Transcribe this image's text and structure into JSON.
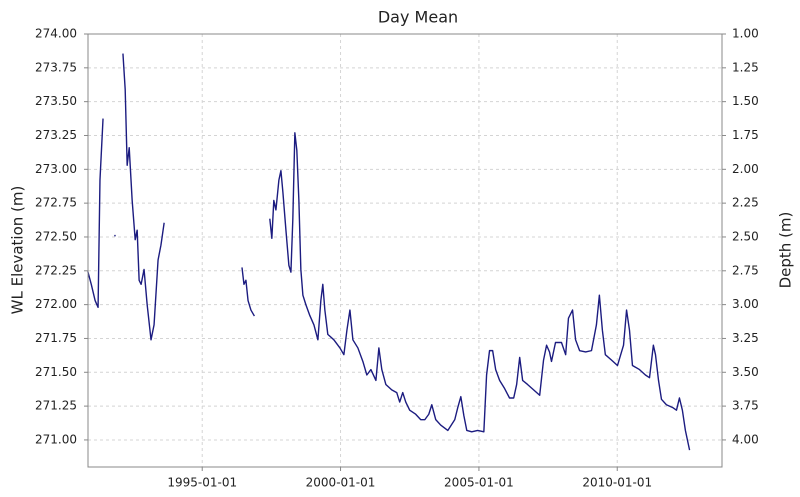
{
  "chart_data": {
    "type": "line",
    "title": "Day Mean",
    "y_label": "WL Elevation (m)",
    "y2_label": "Depth (m)",
    "xlim": [
      "1990-11-15",
      "2013-10-15"
    ],
    "xticks": [
      "1995-01-01",
      "2000-01-01",
      "2005-01-01",
      "2010-01-01"
    ],
    "ylim": [
      270.8,
      274.0
    ],
    "yticks": [
      {
        "value": 271.0,
        "label": "271.00"
      },
      {
        "value": 271.25,
        "label": "271.25"
      },
      {
        "value": 271.5,
        "label": "271.50"
      },
      {
        "value": 271.75,
        "label": "271.75"
      },
      {
        "value": 272.0,
        "label": "272.00"
      },
      {
        "value": 272.25,
        "label": "272.25"
      },
      {
        "value": 272.5,
        "label": "272.50"
      },
      {
        "value": 272.75,
        "label": "272.75"
      },
      {
        "value": 273.0,
        "label": "273.00"
      },
      {
        "value": 273.25,
        "label": "273.25"
      },
      {
        "value": 273.5,
        "label": "273.50"
      },
      {
        "value": 273.75,
        "label": "273.75"
      },
      {
        "value": 274.0,
        "label": "274.00"
      }
    ],
    "y2lim": [
      4.2,
      1.0
    ],
    "y2ticks": [
      {
        "value": 4.0,
        "label": "4.00"
      },
      {
        "value": 3.75,
        "label": "3.75"
      },
      {
        "value": 3.5,
        "label": "3.50"
      },
      {
        "value": 3.25,
        "label": "3.25"
      },
      {
        "value": 3.0,
        "label": "3.00"
      },
      {
        "value": 2.75,
        "label": "2.75"
      },
      {
        "value": 2.5,
        "label": "2.50"
      },
      {
        "value": 2.25,
        "label": "2.25"
      },
      {
        "value": 2.0,
        "label": "2.00"
      },
      {
        "value": 1.75,
        "label": "1.75"
      },
      {
        "value": 1.5,
        "label": "1.50"
      },
      {
        "value": 1.25,
        "label": "1.25"
      },
      {
        "value": 1.0,
        "label": "1.00"
      }
    ],
    "grid": true,
    "x": [
      "1990-11-15",
      "1990-12-28",
      "1991-02-17",
      "1991-03-28",
      "1991-04-22",
      "1991-06-01",
      "1991-09-01",
      "1991-11-06",
      "1992-01-01",
      "1992-02-20",
      "1992-03-20",
      "1992-04-15",
      "1992-05-12",
      "1992-06-20",
      "1992-07-30",
      "1992-08-25",
      "1992-09-20",
      "1992-10-16",
      "1992-11-24",
      "1993-01-04",
      "1993-02-24",
      "1993-04-05",
      "1993-05-28",
      "1993-07-05",
      "1993-08-15",
      "1994-01-01",
      "1996-06-10",
      "1996-07-05",
      "1996-07-31",
      "1996-08-28",
      "1996-10-05",
      "1996-11-15",
      "1997-03-01",
      "1997-06-12",
      "1997-07-08",
      "1997-08-03",
      "1997-08-31",
      "1997-10-09",
      "1997-11-05",
      "1997-12-01",
      "1998-01-10",
      "1998-02-18",
      "1998-03-17",
      "1998-04-11",
      "1998-05-08",
      "1998-06-03",
      "1998-06-30",
      "1998-07-26",
      "1998-08-22",
      "1998-09-30",
      "1998-11-21",
      "1999-01-15",
      "1999-03-08",
      "1999-04-16",
      "1999-05-12",
      "1999-06-08",
      "1999-07-17",
      "1999-10-05",
      "1999-12-24",
      "2000-02-14",
      "2000-03-25",
      "2000-05-04",
      "2000-06-12",
      "2000-08-17",
      "2000-10-22",
      "2000-12-13",
      "2001-02-05",
      "2001-04-12",
      "2001-05-21",
      "2001-06-29",
      "2001-08-21",
      "2001-11-07",
      "2002-01-12",
      "2002-02-20",
      "2002-04-01",
      "2002-05-11",
      "2002-07-02",
      "2002-09-19",
      "2002-11-24",
      "2003-01-18",
      "2003-03-11",
      "2003-04-20",
      "2003-06-11",
      "2003-08-15",
      "2003-11-17",
      "2004-02-17",
      "2004-03-28",
      "2004-05-07",
      "2004-06-16",
      "2004-07-25",
      "2004-09-28",
      "2004-12-16",
      "2005-03-07",
      "2005-04-12",
      "2005-05-21",
      "2005-07-01",
      "2005-08-10",
      "2005-10-01",
      "2005-12-06",
      "2006-02-09",
      "2006-04-05",
      "2006-05-14",
      "2006-06-23",
      "2006-08-01",
      "2006-10-05",
      "2006-12-24",
      "2007-03-14",
      "2007-05-04",
      "2007-06-13",
      "2007-07-22",
      "2007-08-17",
      "2007-10-09",
      "2007-12-27",
      "2008-02-20",
      "2008-03-28",
      "2008-05-21",
      "2008-06-30",
      "2008-08-22",
      "2008-11-10",
      "2009-01-26",
      "2009-04-01",
      "2009-05-10",
      "2009-06-19",
      "2009-07-28",
      "2009-10-18",
      "2010-01-04",
      "2010-03-25",
      "2010-05-04",
      "2010-06-12",
      "2010-07-21",
      "2010-10-22",
      "2011-01-08",
      "2011-03-03",
      "2011-04-23",
      "2011-05-21",
      "2011-06-30",
      "2011-08-08",
      "2011-10-12",
      "2012-01-01",
      "2012-02-22",
      "2012-04-01",
      "2012-05-10",
      "2012-06-19",
      "2012-08-11"
    ],
    "series": [
      {
        "name": "WL Elevation",
        "color": "#1c1c80",
        "values": [
          272.24,
          272.15,
          272.03,
          271.98,
          272.92,
          273.37,
          null,
          272.51,
          null,
          273.85,
          273.59,
          273.03,
          273.16,
          272.77,
          272.48,
          272.55,
          272.18,
          272.15,
          272.26,
          272.0,
          271.74,
          271.85,
          272.33,
          272.44,
          272.6,
          null,
          272.27,
          272.15,
          272.18,
          272.03,
          271.96,
          271.92,
          null,
          272.63,
          272.49,
          272.77,
          272.7,
          272.92,
          272.99,
          272.83,
          272.55,
          272.29,
          272.24,
          272.63,
          273.27,
          273.14,
          272.77,
          272.26,
          272.07,
          272.0,
          271.92,
          271.85,
          271.74,
          272.03,
          272.15,
          271.96,
          271.78,
          271.74,
          271.68,
          271.63,
          271.81,
          271.96,
          271.74,
          271.68,
          271.58,
          271.48,
          271.52,
          271.44,
          271.68,
          271.52,
          271.41,
          271.37,
          271.35,
          271.28,
          271.35,
          271.28,
          271.22,
          271.19,
          271.15,
          271.15,
          271.19,
          271.26,
          271.15,
          271.11,
          271.07,
          271.15,
          271.24,
          271.32,
          271.18,
          271.07,
          271.06,
          271.07,
          271.06,
          271.48,
          271.66,
          271.66,
          271.52,
          271.44,
          271.38,
          271.31,
          271.31,
          271.41,
          271.61,
          271.44,
          271.41,
          271.37,
          271.33,
          271.59,
          271.7,
          271.65,
          271.58,
          271.72,
          271.72,
          271.63,
          271.9,
          271.96,
          271.74,
          271.66,
          271.65,
          271.66,
          271.85,
          272.07,
          271.81,
          271.63,
          271.59,
          271.55,
          271.7,
          271.96,
          271.81,
          271.55,
          271.52,
          271.48,
          271.46,
          271.7,
          271.63,
          271.44,
          271.3,
          271.26,
          271.24,
          271.22,
          271.31,
          271.22,
          271.07,
          270.93
        ]
      }
    ]
  }
}
